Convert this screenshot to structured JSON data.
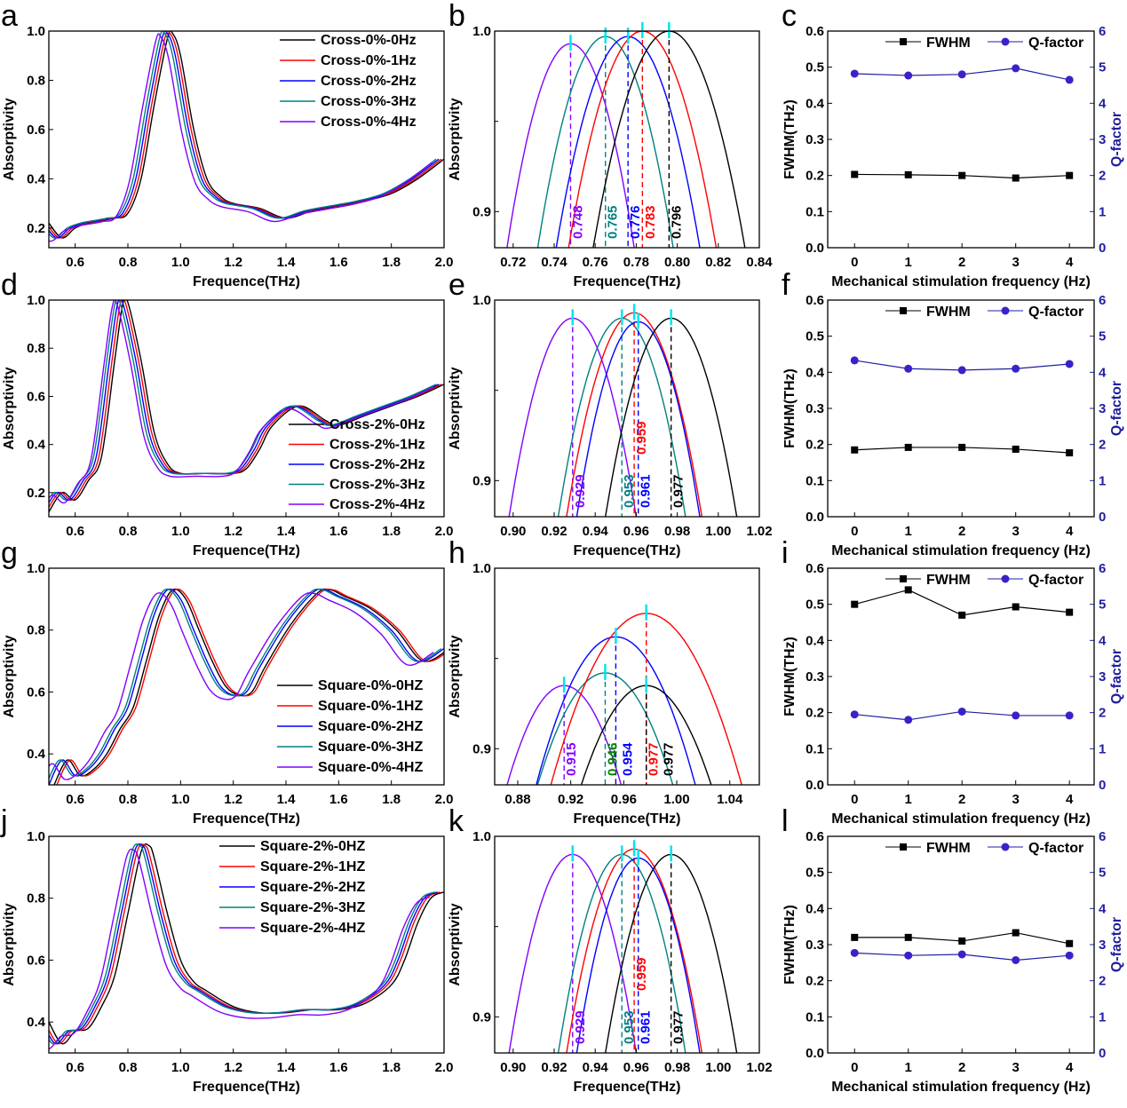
{
  "colors": {
    "0Hz": "#000000",
    "1Hz": "#ff0000",
    "2Hz": "#0000ff",
    "3Hz": "#008080",
    "4Hz": "#8000ff",
    "q": "#1f1fa0",
    "peak_marker": "#00e5ee"
  },
  "chart_data": [
    {
      "panel": "a",
      "type": "line",
      "xlabel": "Frequence(THz)",
      "ylabel": "Absorptivity",
      "xlim": [
        0.5,
        2.0
      ],
      "ylim": [
        0.12,
        1.0
      ],
      "xticks": [
        0.6,
        0.8,
        1.0,
        1.2,
        1.4,
        1.6,
        1.8,
        2.0
      ],
      "yticks": [
        0.2,
        0.4,
        0.6,
        0.8,
        1.0
      ],
      "legend_placement": "top-right",
      "base_curve": {
        "x": [
          0.5,
          0.55,
          0.6,
          0.65,
          0.7,
          0.75,
          0.8,
          0.85,
          0.9,
          0.95,
          0.97,
          1.0,
          1.05,
          1.1,
          1.15,
          1.2,
          1.3,
          1.4,
          1.5,
          1.6,
          1.7,
          1.8,
          1.9,
          2.0
        ],
        "y": [
          0.22,
          0.16,
          0.2,
          0.22,
          0.23,
          0.24,
          0.26,
          0.4,
          0.7,
          0.97,
          0.99,
          0.9,
          0.6,
          0.4,
          0.33,
          0.3,
          0.28,
          0.24,
          0.27,
          0.29,
          0.31,
          0.34,
          0.4,
          0.48
        ]
      },
      "series": [
        {
          "name": "Cross-0%-0Hz",
          "key": "0Hz",
          "shift": 0
        },
        {
          "name": "Cross-0%-1Hz",
          "key": "1Hz",
          "shift": -0.01
        },
        {
          "name": "Cross-0%-2Hz",
          "key": "2Hz",
          "shift": -0.02
        },
        {
          "name": "Cross-0%-3Hz",
          "key": "3Hz",
          "shift": -0.03
        },
        {
          "name": "Cross-0%-4Hz",
          "key": "4Hz",
          "shift": -0.045
        }
      ]
    },
    {
      "panel": "b",
      "type": "line",
      "xlabel": "Frequence(THz)",
      "ylabel": "Absorptivity",
      "xlim": [
        0.711,
        0.84
      ],
      "ylim": [
        0.88,
        1.0
      ],
      "xticks": [
        0.72,
        0.74,
        0.76,
        0.78,
        0.8,
        0.82,
        0.84
      ],
      "yticks": [
        0.9,
        1.0
      ],
      "series": [
        {
          "key": "4Hz",
          "peak_x": 0.748,
          "peak_y": 0.993,
          "halfwidth": 0.031,
          "label": "0.748"
        },
        {
          "key": "3Hz",
          "peak_x": 0.765,
          "peak_y": 0.997,
          "halfwidth": 0.033,
          "label": "0.765"
        },
        {
          "key": "2Hz",
          "peak_x": 0.776,
          "peak_y": 0.997,
          "halfwidth": 0.035,
          "label": "0.776"
        },
        {
          "key": "1Hz",
          "peak_x": 0.783,
          "peak_y": 1.0,
          "halfwidth": 0.036,
          "label": "0.783"
        },
        {
          "key": "0Hz",
          "peak_x": 0.796,
          "peak_y": 1.0,
          "halfwidth": 0.037,
          "label": "0.796"
        }
      ]
    },
    {
      "panel": "c",
      "type": "line",
      "xlabel": "Mechanical stimulation frequency (Hz)",
      "ylabel": "FWHM(THz)",
      "y2label": "Q-factor",
      "xlim": [
        -0.5,
        4.46
      ],
      "ylim": [
        0,
        0.6
      ],
      "y2lim": [
        0,
        6
      ],
      "x": [
        0,
        1,
        2,
        3,
        4
      ],
      "xticks": [
        0,
        1,
        2,
        3,
        4
      ],
      "yticks": [
        0.0,
        0.1,
        0.2,
        0.3,
        0.4,
        0.5,
        0.6
      ],
      "y2ticks": [
        0,
        1,
        2,
        3,
        4,
        5,
        6
      ],
      "legend": [
        "FWHM",
        "Q-factor"
      ],
      "fwhm": [
        0.203,
        0.202,
        0.2,
        0.193,
        0.2
      ],
      "q": [
        4.82,
        4.77,
        4.8,
        4.97,
        4.65
      ]
    },
    {
      "panel": "d",
      "type": "line",
      "xlabel": "Frequence(THz)",
      "ylabel": "Absorptivity",
      "xlim": [
        0.5,
        2.0
      ],
      "ylim": [
        0.1,
        1.0
      ],
      "xticks": [
        0.6,
        0.8,
        1.0,
        1.2,
        1.4,
        1.6,
        1.8,
        2.0
      ],
      "yticks": [
        0.2,
        0.4,
        0.6,
        0.8,
        1.0
      ],
      "legend_placement": "bottom-right",
      "base_curve": {
        "x": [
          0.5,
          0.55,
          0.6,
          0.65,
          0.7,
          0.75,
          0.78,
          0.8,
          0.85,
          0.9,
          0.95,
          1.0,
          1.1,
          1.2,
          1.25,
          1.3,
          1.35,
          1.45,
          1.55,
          1.6,
          1.7,
          1.8,
          1.9,
          2.0
        ],
        "y": [
          0.12,
          0.2,
          0.17,
          0.25,
          0.35,
          0.75,
          0.98,
          0.99,
          0.75,
          0.45,
          0.32,
          0.28,
          0.28,
          0.28,
          0.3,
          0.38,
          0.48,
          0.56,
          0.5,
          0.48,
          0.52,
          0.56,
          0.6,
          0.65
        ]
      },
      "series": [
        {
          "name": "Cross-2%-0Hz",
          "key": "0Hz",
          "shift": 0
        },
        {
          "name": "Cross-2%-1Hz",
          "key": "1Hz",
          "shift": -0.01
        },
        {
          "name": "Cross-2%-2Hz",
          "key": "2Hz",
          "shift": -0.02
        },
        {
          "name": "Cross-2%-3Hz",
          "key": "3Hz",
          "shift": -0.03
        },
        {
          "name": "Cross-2%-4Hz",
          "key": "4Hz",
          "shift": -0.04
        }
      ]
    },
    {
      "panel": "e",
      "type": "line",
      "xlabel": "Frequence(THz)",
      "ylabel": "Absorptivity",
      "xlim": [
        0.891,
        1.02
      ],
      "ylim": [
        0.88,
        1.0
      ],
      "xticks": [
        0.9,
        0.92,
        0.94,
        0.96,
        0.98,
        1.0,
        1.02
      ],
      "yticks": [
        0.9,
        1.0
      ],
      "series": [
        {
          "key": "4Hz",
          "peak_x": 0.929,
          "peak_y": 0.99,
          "halfwidth": 0.031,
          "label": "0.929"
        },
        {
          "key": "3Hz",
          "peak_x": 0.953,
          "peak_y": 0.99,
          "halfwidth": 0.031,
          "label": "0.953"
        },
        {
          "key": "2Hz",
          "peak_x": 0.961,
          "peak_y": 0.988,
          "halfwidth": 0.03,
          "label": "0.961"
        },
        {
          "key": "1Hz",
          "peak_x": 0.959,
          "peak_y": 0.993,
          "halfwidth": 0.033,
          "label": "0.959",
          "label_high": true
        },
        {
          "key": "0Hz",
          "peak_x": 0.977,
          "peak_y": 0.99,
          "halfwidth": 0.032,
          "label": "0.977"
        }
      ]
    },
    {
      "panel": "f",
      "type": "line",
      "xlabel": "Mechanical stimulation frequency (Hz)",
      "ylabel": "FWHM(THz)",
      "y2label": "Q-factor",
      "xlim": [
        -0.5,
        4.46
      ],
      "ylim": [
        0,
        0.6
      ],
      "y2lim": [
        0,
        6
      ],
      "x": [
        0,
        1,
        2,
        3,
        4
      ],
      "xticks": [
        0,
        1,
        2,
        3,
        4
      ],
      "yticks": [
        0.0,
        0.1,
        0.2,
        0.3,
        0.4,
        0.5,
        0.6
      ],
      "y2ticks": [
        0,
        1,
        2,
        3,
        4,
        5,
        6
      ],
      "legend": [
        "FWHM",
        "Q-factor"
      ],
      "fwhm": [
        0.185,
        0.192,
        0.192,
        0.187,
        0.177
      ],
      "q": [
        4.33,
        4.1,
        4.06,
        4.1,
        4.23
      ]
    },
    {
      "panel": "g",
      "type": "line",
      "xlabel": "Frequence(THz)",
      "ylabel": "Absorptivity",
      "xlim": [
        0.5,
        2.0
      ],
      "ylim": [
        0.3,
        1.0
      ],
      "xticks": [
        0.6,
        0.8,
        1.0,
        1.2,
        1.4,
        1.6,
        1.8,
        2.0
      ],
      "yticks": [
        0.4,
        0.6,
        0.8,
        1.0
      ],
      "legend_placement": "bottom-right",
      "base_curve": {
        "x": [
          0.5,
          0.55,
          0.6,
          0.65,
          0.7,
          0.75,
          0.8,
          0.85,
          0.9,
          0.95,
          1.0,
          1.05,
          1.1,
          1.15,
          1.2,
          1.25,
          1.3,
          1.4,
          1.5,
          1.55,
          1.6,
          1.7,
          1.8,
          1.9,
          2.0
        ],
        "y": [
          0.3,
          0.38,
          0.33,
          0.35,
          0.4,
          0.48,
          0.55,
          0.7,
          0.85,
          0.93,
          0.9,
          0.8,
          0.7,
          0.62,
          0.59,
          0.6,
          0.68,
          0.82,
          0.92,
          0.93,
          0.91,
          0.87,
          0.8,
          0.7,
          0.74
        ]
      },
      "series": [
        {
          "name": "Square-0%-0HZ",
          "key": "0Hz",
          "shift": 0.02
        },
        {
          "name": "Square-0%-1HZ",
          "key": "1Hz",
          "shift": 0.03
        },
        {
          "name": "Square-0%-2HZ",
          "key": "2Hz",
          "shift": 0
        },
        {
          "name": "Square-0%-3HZ",
          "key": "3Hz",
          "shift": -0.01
        },
        {
          "name": "Square-0%-4HZ",
          "key": "4Hz",
          "shift": -0.04
        }
      ]
    },
    {
      "panel": "h",
      "type": "line",
      "xlabel": "Frequence(THz)",
      "ylabel": "Absorptivity",
      "xlim": [
        0.8626,
        1.0623
      ],
      "ylim": [
        0.88,
        1.0
      ],
      "xticks": [
        0.88,
        0.92,
        0.96,
        1.0,
        1.04
      ],
      "yticks": [
        0.9,
        1.0
      ],
      "series": [
        {
          "key": "4Hz",
          "peak_x": 0.915,
          "peak_y": 0.935,
          "halfwidth": 0.043,
          "label": "0.915"
        },
        {
          "key": "3Hz",
          "peak_x": 0.946,
          "peak_y": 0.942,
          "halfwidth": 0.051,
          "label": "0.946",
          "label_color": "#008000"
        },
        {
          "key": "2Hz",
          "peak_x": 0.954,
          "peak_y": 0.962,
          "halfwidth": 0.06,
          "label": "0.954"
        },
        {
          "key": "1Hz",
          "peak_x": 0.977,
          "peak_y": 0.975,
          "halfwidth": 0.072,
          "label": "0.977"
        },
        {
          "key": "0Hz",
          "peak_x": 0.977,
          "peak_y": 0.935,
          "halfwidth": 0.049,
          "label": "0.977"
        }
      ]
    },
    {
      "panel": "i",
      "type": "line",
      "xlabel": "Mechanical stimulation frequency (Hz)",
      "ylabel": "FWHM(THz)",
      "y2label": "Q-factor",
      "xlim": [
        -0.5,
        4.46
      ],
      "ylim": [
        0,
        0.6
      ],
      "y2lim": [
        0,
        6
      ],
      "x": [
        0,
        1,
        2,
        3,
        4
      ],
      "xticks": [
        0,
        1,
        2,
        3,
        4
      ],
      "yticks": [
        0.0,
        0.1,
        0.2,
        0.3,
        0.4,
        0.5,
        0.6
      ],
      "y2ticks": [
        0,
        1,
        2,
        3,
        4,
        5,
        6
      ],
      "legend": [
        "FWHM",
        "Q-factor"
      ],
      "fwhm": [
        0.5,
        0.54,
        0.47,
        0.493,
        0.478
      ],
      "q": [
        1.95,
        1.8,
        2.03,
        1.92,
        1.92
      ]
    },
    {
      "panel": "j",
      "type": "line",
      "xlabel": "Frequence(THz)",
      "ylabel": "Absorptivity",
      "xlim": [
        0.5,
        2.0
      ],
      "ylim": [
        0.3,
        1.0
      ],
      "xticks": [
        0.6,
        0.8,
        1.0,
        1.2,
        1.4,
        1.6,
        1.8,
        2.0
      ],
      "yticks": [
        0.4,
        0.6,
        0.8,
        1.0
      ],
      "legend_placement": "top-center",
      "base_curve": {
        "x": [
          0.5,
          0.55,
          0.6,
          0.65,
          0.7,
          0.75,
          0.8,
          0.85,
          0.88,
          0.9,
          0.95,
          1.0,
          1.05,
          1.1,
          1.2,
          1.3,
          1.4,
          1.5,
          1.6,
          1.7,
          1.8,
          1.85,
          1.9,
          1.95,
          2.0
        ],
        "y": [
          0.4,
          0.33,
          0.37,
          0.38,
          0.45,
          0.55,
          0.75,
          0.95,
          0.97,
          0.93,
          0.75,
          0.6,
          0.53,
          0.5,
          0.45,
          0.43,
          0.43,
          0.44,
          0.44,
          0.46,
          0.52,
          0.6,
          0.72,
          0.8,
          0.82
        ]
      },
      "series": [
        {
          "name": "Square-2%-0HZ",
          "key": "0Hz",
          "shift": 0
        },
        {
          "name": "Square-2%-1HZ",
          "key": "1Hz",
          "shift": -0.015
        },
        {
          "name": "Square-2%-2HZ",
          "key": "2Hz",
          "shift": -0.025
        },
        {
          "name": "Square-2%-3HZ",
          "key": "3Hz",
          "shift": -0.035
        },
        {
          "name": "Square-2%-4HZ",
          "key": "4Hz",
          "shift": -0.055
        }
      ]
    },
    {
      "panel": "k",
      "type": "line",
      "xlabel": "Frequence(THz)",
      "ylabel": "Absorptivity",
      "xlim": [
        0.891,
        1.02
      ],
      "ylim": [
        0.88,
        1.0
      ],
      "xticks": [
        0.9,
        0.92,
        0.94,
        0.96,
        0.98,
        1.0,
        1.02
      ],
      "yticks": [
        0.9,
        1.0
      ],
      "series": [
        {
          "key": "4Hz",
          "peak_x": 0.929,
          "peak_y": 0.99,
          "halfwidth": 0.031,
          "label": "0.929"
        },
        {
          "key": "3Hz",
          "peak_x": 0.953,
          "peak_y": 0.99,
          "halfwidth": 0.031,
          "label": "0.953"
        },
        {
          "key": "2Hz",
          "peak_x": 0.961,
          "peak_y": 0.988,
          "halfwidth": 0.03,
          "label": "0.961"
        },
        {
          "key": "1Hz",
          "peak_x": 0.959,
          "peak_y": 0.993,
          "halfwidth": 0.033,
          "label": "0.959",
          "label_high": true
        },
        {
          "key": "0Hz",
          "peak_x": 0.977,
          "peak_y": 0.99,
          "halfwidth": 0.032,
          "label": "0.977"
        }
      ]
    },
    {
      "panel": "l",
      "type": "line",
      "xlabel": "Mechanical stimulation frequency (Hz)",
      "ylabel": "FWHM(THz)",
      "y2label": "Q-factor",
      "xlim": [
        -0.5,
        4.46
      ],
      "ylim": [
        0,
        0.6
      ],
      "y2lim": [
        0,
        6
      ],
      "x": [
        0,
        1,
        2,
        3,
        4
      ],
      "xticks": [
        0,
        1,
        2,
        3,
        4
      ],
      "yticks": [
        0.0,
        0.1,
        0.2,
        0.3,
        0.4,
        0.5,
        0.6
      ],
      "y2ticks": [
        0,
        1,
        2,
        3,
        4,
        5,
        6
      ],
      "legend": [
        "FWHM",
        "Q-factor"
      ],
      "fwhm": [
        0.32,
        0.32,
        0.31,
        0.333,
        0.303
      ],
      "q": [
        2.77,
        2.7,
        2.73,
        2.57,
        2.7
      ]
    }
  ]
}
